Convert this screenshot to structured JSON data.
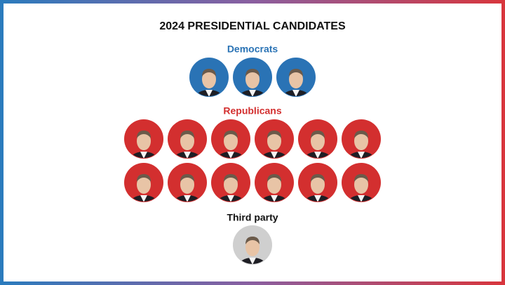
{
  "header": {
    "title": "2024 PRESIDENTIAL CANDIDATES"
  },
  "sections": [
    {
      "label": "Democrats"
    },
    {
      "label": "Republicans"
    },
    {
      "label": "Third party"
    }
  ]
}
